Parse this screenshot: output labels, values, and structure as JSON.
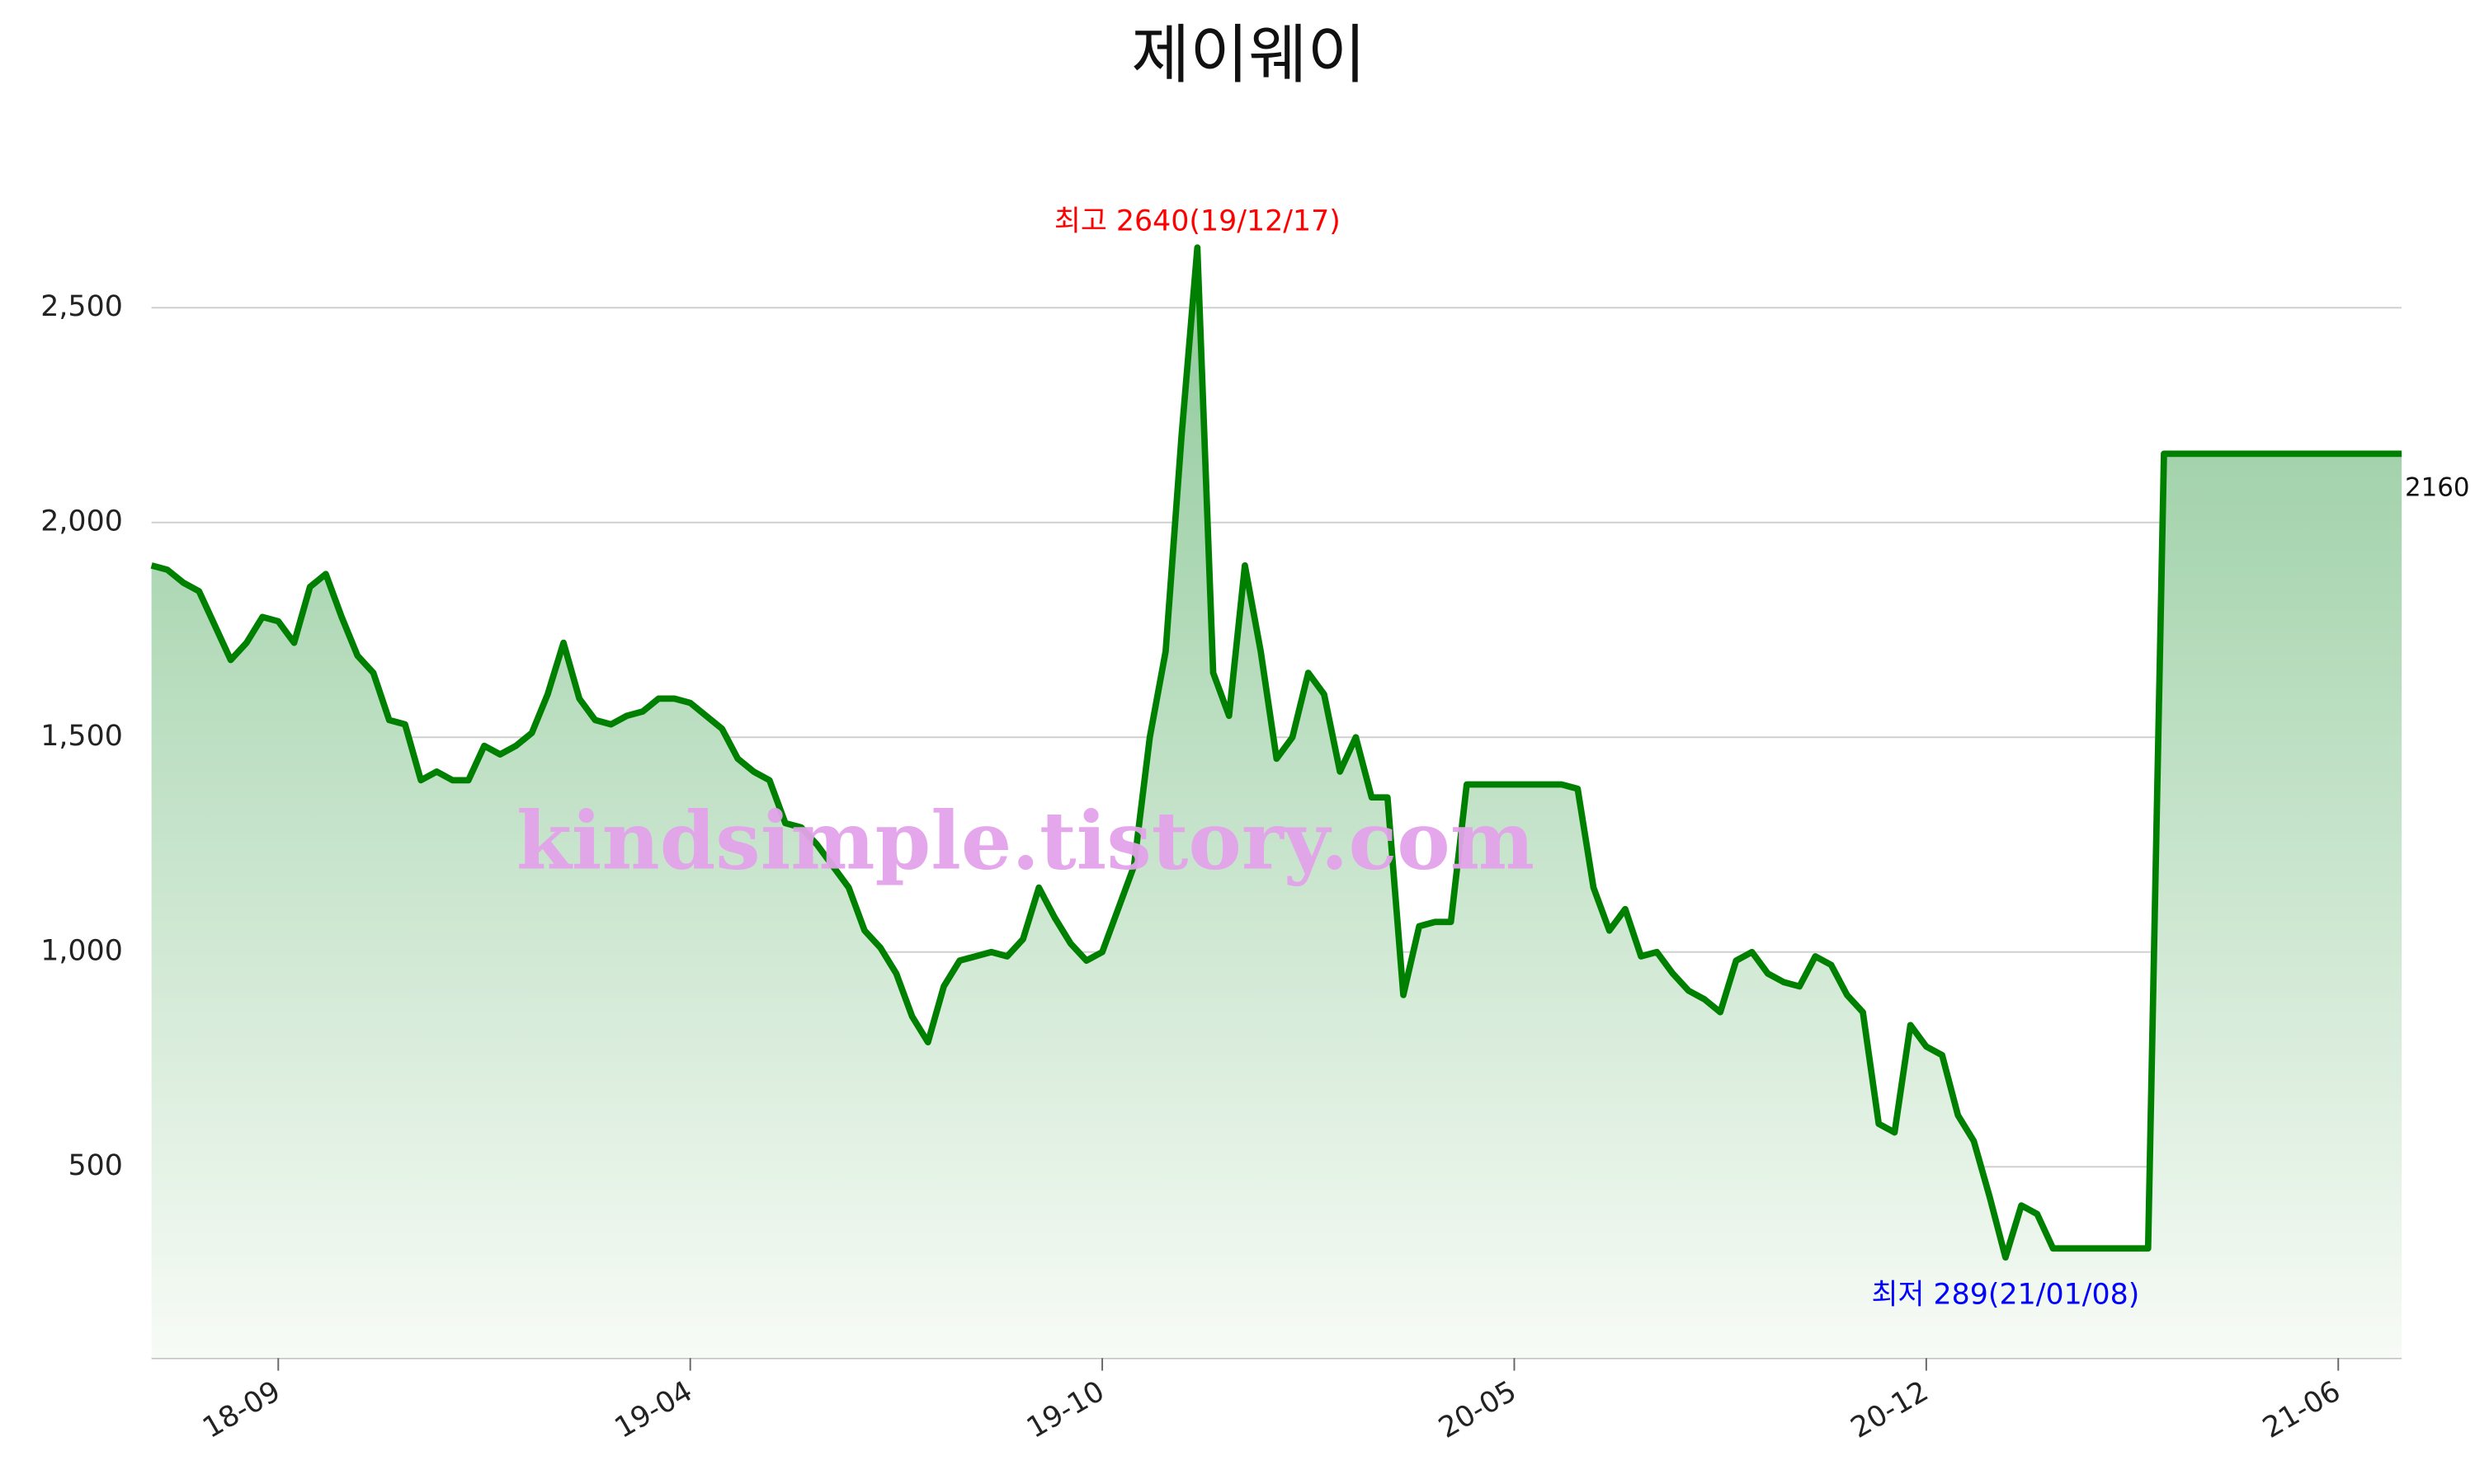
{
  "chart_data": {
    "type": "area",
    "title": "제이웨이",
    "color": "#008000",
    "fill_top": "#8fc99a",
    "fill_bottom": "#f7fbf6",
    "grid": true,
    "ylim": [
      55,
      2845
    ],
    "yticks": [
      500,
      {
        "value": 1000,
        "label": "1,000"
      },
      {
        "value": 1500,
        "label": "1,500"
      },
      {
        "value": 2000,
        "label": "2,000"
      },
      {
        "value": 2500,
        "label": "2,500"
      }
    ],
    "categories": [
      null,
      null,
      null,
      null,
      null,
      null,
      null,
      null,
      "18-09",
      null,
      null,
      null,
      null,
      null,
      null,
      null,
      null,
      null,
      null,
      null,
      null,
      null,
      null,
      null,
      null,
      null,
      null,
      null,
      null,
      null,
      null,
      null,
      null,
      null,
      "19-04",
      null,
      null,
      null,
      null,
      null,
      null,
      null,
      null,
      null,
      null,
      null,
      null,
      null,
      null,
      null,
      null,
      null,
      null,
      null,
      null,
      null,
      null,
      null,
      null,
      null,
      "19-10",
      null,
      null,
      null,
      null,
      null,
      null,
      null,
      null,
      null,
      null,
      null,
      null,
      null,
      null,
      null,
      null,
      null,
      null,
      null,
      null,
      null,
      null,
      null,
      null,
      null,
      "20-05",
      null,
      null,
      null,
      null,
      null,
      null,
      null,
      null,
      null,
      null,
      null,
      null,
      null,
      null,
      null,
      null,
      null,
      null,
      null,
      null,
      null,
      null,
      null,
      null,
      null,
      "20-12",
      null,
      null,
      null,
      null,
      null,
      null,
      null,
      null,
      null,
      null,
      null,
      null,
      null,
      null,
      null,
      null,
      null,
      null,
      null,
      null,
      null,
      null,
      null,
      null,
      null,
      "21-06",
      null,
      null,
      null,
      null
    ],
    "values": [
      1900,
      1890,
      1860,
      1840,
      1760,
      1680,
      1720,
      1780,
      1770,
      1720,
      1850,
      1880,
      1780,
      1690,
      1650,
      1540,
      1530,
      1400,
      1420,
      1400,
      1400,
      1480,
      1460,
      1480,
      1510,
      1600,
      1720,
      1590,
      1540,
      1530,
      1550,
      1560,
      1590,
      1590,
      1580,
      1550,
      1520,
      1450,
      1420,
      1400,
      1300,
      1290,
      1250,
      1200,
      1150,
      1050,
      1010,
      950,
      850,
      790,
      920,
      980,
      990,
      1000,
      990,
      1030,
      1150,
      1080,
      1020,
      980,
      1000,
      1100,
      1200,
      1500,
      1700,
      2200,
      2640,
      1650,
      1550,
      1900,
      1700,
      1450,
      1500,
      1650,
      1600,
      1420,
      1500,
      1360,
      1360,
      900,
      1060,
      1070,
      1070,
      1390,
      1390,
      1390,
      1390,
      1390,
      1390,
      1390,
      1380,
      1150,
      1050,
      1100,
      990,
      1000,
      950,
      910,
      890,
      860,
      980,
      1000,
      950,
      930,
      920,
      990,
      970,
      900,
      860,
      600,
      580,
      830,
      780,
      760,
      620,
      560,
      430,
      289,
      410,
      390,
      310,
      310,
      310,
      310,
      310,
      310,
      310,
      2160,
      2160,
      2160,
      2160,
      2160,
      2160,
      2160,
      2160,
      2160,
      2160,
      2160,
      2160,
      2160,
      2160,
      2160,
      2160
    ],
    "annotations": [
      {
        "text": "최고 2640(19/12/17)",
        "color": "#ff0000",
        "at": "max"
      },
      {
        "text": "최저 289(21/01/08)",
        "color": "#0000ff",
        "at": "min"
      }
    ],
    "watermark": "kindsimple.tistory.com"
  }
}
